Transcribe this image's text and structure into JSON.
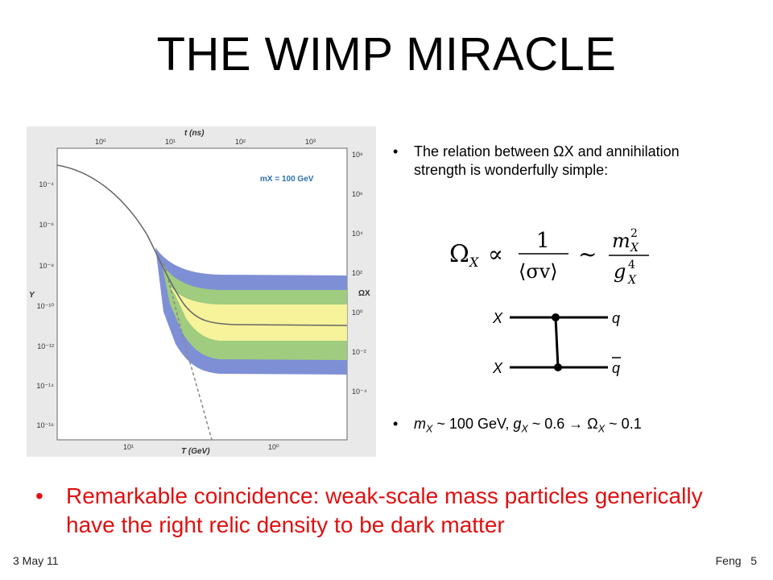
{
  "slide": {
    "title": "THE WIMP MIRACLE",
    "bullet1_text": "The relation between ΩX and annihilation strength is wonderfully simple:",
    "bullet2": {
      "m": "m",
      "sub_x1": "X",
      "part1": " ~ 100 GeV, ",
      "g": "g",
      "sub_x2": "X",
      "part2": " ~ 0.6  ",
      "arrow": "→",
      "part3": "  Ω",
      "sub_x3": "X",
      "part4": " ~ 0.1"
    },
    "main_bullet": "Remarkable coincidence: weak-scale mass particles generically have the right relic density to be dark matter",
    "bullet_char": "•",
    "formula_symbols": {
      "omega": "Ω",
      "sub": "X",
      "prop": "∝",
      "one": "1",
      "sigma_v": "⟨σv⟩",
      "sim": "~",
      "m": "m",
      "m_sub": "X",
      "m_sup": "2",
      "g": "g",
      "g_sub": "X",
      "g_sup": "4"
    },
    "feynman": {
      "top_left": "X",
      "bottom_left": "X",
      "top_right": "q",
      "bottom_right": "q"
    },
    "footer": {
      "date": "3 May 11",
      "author": "Feng",
      "page": "5"
    }
  },
  "chart_data": {
    "type": "line",
    "title": "",
    "top_axis_label": "t (ns)",
    "top_ticks": [
      "10⁰",
      "10¹",
      "10²",
      "10³"
    ],
    "xlabel": "T (GeV)",
    "x_ticks": [
      "10¹",
      "10⁰"
    ],
    "ylabel": "Y",
    "y_ticks": [
      "10⁻⁴",
      "10⁻⁶",
      "10⁻⁸",
      "10⁻¹⁰",
      "10⁻¹²",
      "10⁻¹⁴",
      "10⁻¹⁶"
    ],
    "right_axis_label": "ΩX",
    "right_ticks": [
      "10⁸",
      "10⁶",
      "10⁴",
      "10²",
      "10⁰",
      "10⁻²",
      "10⁻⁴"
    ],
    "annotation": "mX = 100 GeV",
    "series": [],
    "band_colors": {
      "blue": "#7e8fd6",
      "green": "#9fcc7e",
      "yellow": "#f6f39a"
    },
    "accent_colors": {
      "annotation": "#2a6fb0",
      "curve": "#666666",
      "main_bullet": "#e01010"
    }
  }
}
